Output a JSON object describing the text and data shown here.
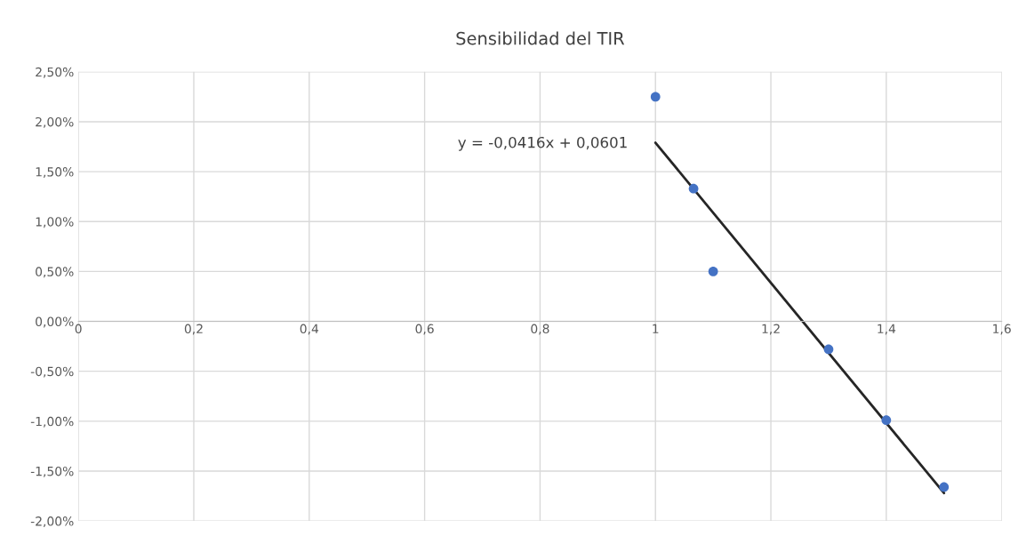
{
  "chart_data": {
    "type": "scatter",
    "title": "Sensibilidad del TIR",
    "series": [
      {
        "color": "#4472c4",
        "marker": "circle",
        "x": [
          1.0,
          1.066,
          1.1,
          1.3,
          1.4,
          1.5
        ],
        "values": [
          0.0225,
          0.0133,
          0.005,
          -0.0028,
          -0.0099,
          -0.0166
        ]
      },
      {
        "type": "line",
        "color": "#262626",
        "line_style": "solid",
        "x": [
          1.0,
          1.5
        ],
        "values": [
          0.0179,
          -0.0172
        ]
      }
    ],
    "annotations": [
      "y = -0,0416x + 0,0601"
    ],
    "xlim": [
      0,
      1.6
    ],
    "xticks": [
      0,
      {
        "value": 0.2,
        "label": "0,2"
      },
      {
        "value": 0.4,
        "label": "0,4"
      },
      {
        "value": 0.6,
        "label": "0,6"
      },
      {
        "value": 0.8,
        "label": "0,8"
      },
      1,
      {
        "value": 1.2,
        "label": "1,2"
      },
      {
        "value": 1.4,
        "label": "1,4"
      },
      {
        "value": 1.6,
        "label": "1,6"
      }
    ],
    "ylim": [
      -0.02,
      0.025
    ],
    "yticks": [
      {
        "value": -0.02,
        "label": "-2,00%"
      },
      {
        "value": -0.015,
        "label": "-1,50%"
      },
      {
        "value": -0.01,
        "label": "-1,00%"
      },
      {
        "value": -0.005,
        "label": "-0,50%"
      },
      {
        "value": 0,
        "label": "0,00%"
      },
      {
        "value": 0.005,
        "label": "0,50%"
      },
      {
        "value": 0.01,
        "label": "1,00%"
      },
      {
        "value": 0.015,
        "label": "1,50%"
      },
      {
        "value": 0.02,
        "label": "2,00%"
      },
      {
        "value": 0.025,
        "label": "2,50%"
      }
    ],
    "grid": true
  }
}
